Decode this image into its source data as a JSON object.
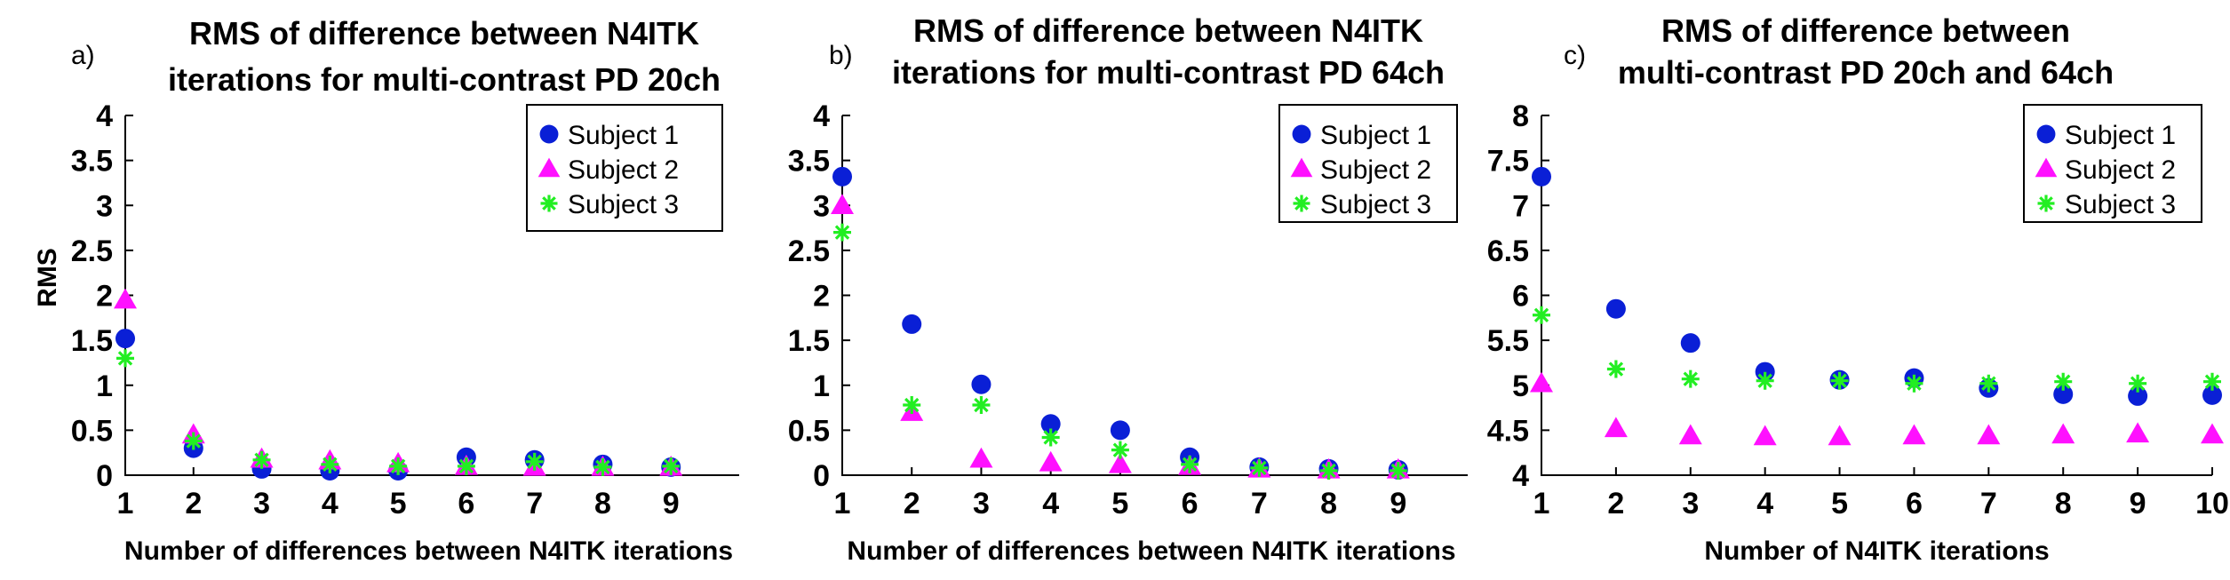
{
  "chart_data": [
    {
      "type": "scatter",
      "panel_label": "a)",
      "title_lines": [
        "RMS of difference between N4ITK",
        "iterations for multi-contrast PD 20ch"
      ],
      "xlabel": "Number of differences between N4ITK iterations",
      "ylabel": "RMS",
      "xlim": [
        1,
        10
      ],
      "ylim": [
        0,
        4
      ],
      "xticks": [
        "1",
        "2",
        "3",
        "4",
        "5",
        "6",
        "7",
        "8",
        "9"
      ],
      "yticks": [
        "0",
        "0.5",
        "1",
        "1.5",
        "2",
        "2.5",
        "3",
        "3.5",
        "4"
      ],
      "legend_position": "top-right",
      "series": [
        {
          "name": "Subject  1",
          "marker": "circle",
          "color": "#0a1fd6",
          "x": [
            1,
            2,
            3,
            4,
            5,
            6,
            7,
            8,
            9
          ],
          "y": [
            1.52,
            0.3,
            0.07,
            0.05,
            0.05,
            0.2,
            0.17,
            0.12,
            0.09
          ]
        },
        {
          "name": "Subject  2",
          "marker": "triangle",
          "color": "#ff10ff",
          "x": [
            1,
            2,
            3,
            4,
            5,
            6,
            7,
            8,
            9
          ],
          "y": [
            1.95,
            0.45,
            0.18,
            0.16,
            0.13,
            0.1,
            0.09,
            0.09,
            0.09
          ]
        },
        {
          "name": "Subject  3",
          "marker": "star",
          "color": "#22ee22",
          "x": [
            1,
            2,
            3,
            4,
            5,
            6,
            7,
            8,
            9
          ],
          "y": [
            1.3,
            0.38,
            0.17,
            0.12,
            0.1,
            0.1,
            0.15,
            0.09,
            0.1
          ]
        }
      ]
    },
    {
      "type": "scatter",
      "panel_label": "b)",
      "title_lines": [
        "RMS of difference between N4ITK",
        "iterations for multi-contrast PD 64ch"
      ],
      "xlabel": "Number of differences between N4ITK iterations",
      "ylabel": "",
      "xlim": [
        1,
        10
      ],
      "ylim": [
        0,
        4
      ],
      "xticks": [
        "1",
        "2",
        "3",
        "4",
        "5",
        "6",
        "7",
        "8",
        "9"
      ],
      "yticks": [
        "0",
        "0.5",
        "1",
        "1.5",
        "2",
        "2.5",
        "3",
        "3.5",
        "4"
      ],
      "legend_position": "top-right",
      "series": [
        {
          "name": "Subject  1",
          "marker": "circle",
          "color": "#0a1fd6",
          "x": [
            1,
            2,
            3,
            4,
            5,
            6,
            7,
            8,
            9
          ],
          "y": [
            3.32,
            1.68,
            1.01,
            0.57,
            0.5,
            0.2,
            0.09,
            0.07,
            0.06
          ]
        },
        {
          "name": "Subject  2",
          "marker": "triangle",
          "color": "#ff10ff",
          "x": [
            1,
            2,
            3,
            4,
            5,
            6,
            7,
            8,
            9
          ],
          "y": [
            3.0,
            0.7,
            0.18,
            0.14,
            0.12,
            0.1,
            0.07,
            0.06,
            0.06
          ]
        },
        {
          "name": "Subject  3",
          "marker": "star",
          "color": "#22ee22",
          "x": [
            1,
            2,
            3,
            4,
            5,
            6,
            7,
            8,
            9
          ],
          "y": [
            2.7,
            0.78,
            0.78,
            0.42,
            0.28,
            0.12,
            0.08,
            0.05,
            0.05
          ]
        }
      ]
    },
    {
      "type": "scatter",
      "panel_label": "c)",
      "title_lines": [
        "RMS of difference between",
        "multi-contrast PD 20ch and 64ch"
      ],
      "xlabel": "Number of N4ITK iterations",
      "ylabel": "",
      "xlim": [
        1,
        10
      ],
      "ylim": [
        4,
        8
      ],
      "xticks": [
        "1",
        "2",
        "3",
        "4",
        "5",
        "6",
        "7",
        "8",
        "9",
        "10"
      ],
      "yticks": [
        "4",
        "4.5",
        "5",
        "5.5",
        "6",
        "6.5",
        "7",
        "7.5",
        "8"
      ],
      "legend_position": "top-right",
      "series": [
        {
          "name": "Subject  1",
          "marker": "circle",
          "color": "#0a1fd6",
          "x": [
            1,
            2,
            3,
            4,
            5,
            6,
            7,
            8,
            9,
            10
          ],
          "y": [
            7.32,
            5.85,
            5.47,
            5.15,
            5.06,
            5.08,
            4.97,
            4.9,
            4.88,
            4.89
          ]
        },
        {
          "name": "Subject  2",
          "marker": "triangle",
          "color": "#ff10ff",
          "x": [
            1,
            2,
            3,
            4,
            5,
            6,
            7,
            8,
            9,
            10
          ],
          "y": [
            5.02,
            4.52,
            4.44,
            4.43,
            4.43,
            4.44,
            4.44,
            4.45,
            4.46,
            4.45
          ]
        },
        {
          "name": "Subject  3",
          "marker": "star",
          "color": "#22ee22",
          "x": [
            1,
            2,
            3,
            4,
            5,
            6,
            7,
            8,
            9,
            10
          ],
          "y": [
            5.78,
            5.18,
            5.07,
            5.05,
            5.05,
            5.02,
            5.02,
            5.04,
            5.02,
            5.04
          ]
        }
      ]
    }
  ]
}
